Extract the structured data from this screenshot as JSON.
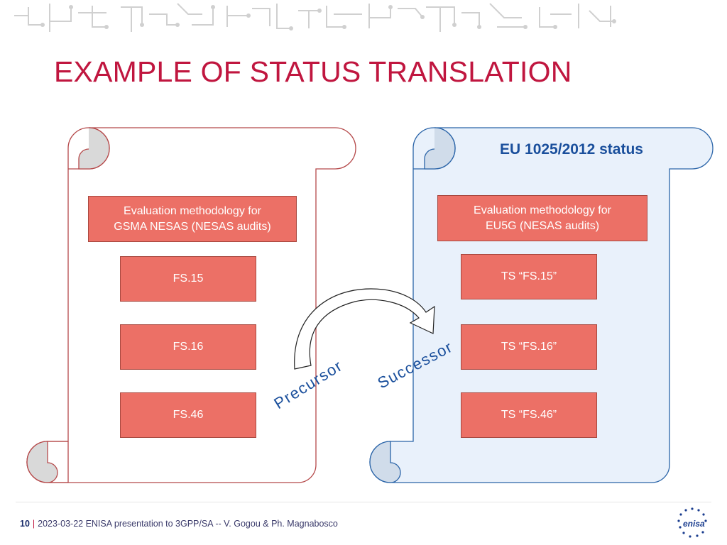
{
  "slide": {
    "title": "EXAMPLE OF STATUS TRANSLATION"
  },
  "left_scroll": {
    "title": "",
    "boxes": [
      {
        "lines": [
          "Evaluation methodology for",
          "GSMA NESAS (NESAS audits)"
        ]
      },
      {
        "lines": [
          "FS.15"
        ]
      },
      {
        "lines": [
          "FS.16"
        ]
      },
      {
        "lines": [
          "FS.46"
        ]
      }
    ]
  },
  "right_scroll": {
    "title": "EU 1025/2012 status",
    "boxes": [
      {
        "lines": [
          "Evaluation methodology for",
          "EU5G (NESAS audits)"
        ]
      },
      {
        "lines": [
          "TS “FS.15”"
        ]
      },
      {
        "lines": [
          "TS “FS.16”"
        ]
      },
      {
        "lines": [
          "TS “FS.46”"
        ]
      }
    ]
  },
  "arrow": {
    "precursor_label": "Precursor",
    "successor_label": "Successor"
  },
  "footer": {
    "page_number": "10",
    "separator": "|",
    "text": "2023-03-22 ENISA presentation to 3GPP/SA -- V. Gogou & Ph. Magnabosco"
  },
  "logo": {
    "text": "enisa"
  },
  "colors": {
    "title": "#c0163f",
    "box_fill": "#ec7066",
    "left_scroll_stroke": "#b5494a",
    "right_scroll_stroke": "#2a64a8",
    "right_scroll_fill": "#e9f1fb"
  }
}
